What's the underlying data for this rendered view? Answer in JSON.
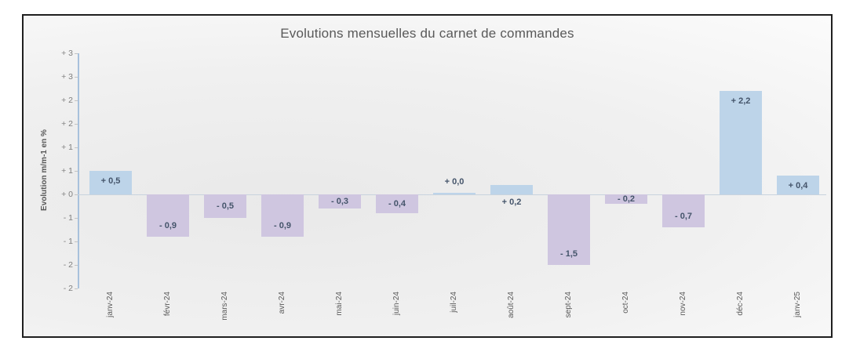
{
  "chart_data": {
    "type": "bar",
    "title": "Evolutions mensuelles du carnet de commandes",
    "ylabel": "Evolution m/m-1 en %",
    "xlabel": "",
    "categories": [
      "janv-24",
      "févr-24",
      "mars-24",
      "avr-24",
      "mai-24",
      "juin-24",
      "juil-24",
      "août-24",
      "sept-24",
      "oct-24",
      "nov-24",
      "déc-24",
      "janv-25"
    ],
    "values": [
      0.5,
      -0.9,
      -0.5,
      -0.9,
      -0.3,
      -0.4,
      0.0,
      0.2,
      -1.5,
      -0.2,
      -0.7,
      2.2,
      0.4
    ],
    "value_labels": [
      "+ 0,5",
      "- 0,9",
      "- 0,5",
      "- 0,9",
      "- 0,3",
      "- 0,4",
      "+ 0,0",
      "+ 0,2",
      "- 1,5",
      "- 0,2",
      "- 0,7",
      "+ 2,2",
      "+ 0,4"
    ],
    "ylim": [
      -2,
      3
    ],
    "y_tick_values": [
      3,
      2.5,
      2,
      1.5,
      1,
      0.5,
      0,
      -0.5,
      -1,
      -1.5,
      -2
    ],
    "y_tick_labels": [
      "+ 3",
      "+ 3",
      "+ 2",
      "+ 2",
      "+ 1",
      "+ 1",
      "+ 0",
      "- 1",
      "- 1",
      "- 2",
      "- 2"
    ],
    "grid": "off",
    "legend": "none",
    "colors": {
      "bar_positive": "#BDD4E9",
      "bar_negative": "#CFC6E0",
      "axis_line": "#A8C1DC",
      "zero_line": "#C8D3DE",
      "title_text": "#595959",
      "value_label_text": "#44546A",
      "axis_tick_text": "#7F7F7F",
      "category_text": "#595959",
      "frame_border": "#1F1F1F"
    }
  }
}
